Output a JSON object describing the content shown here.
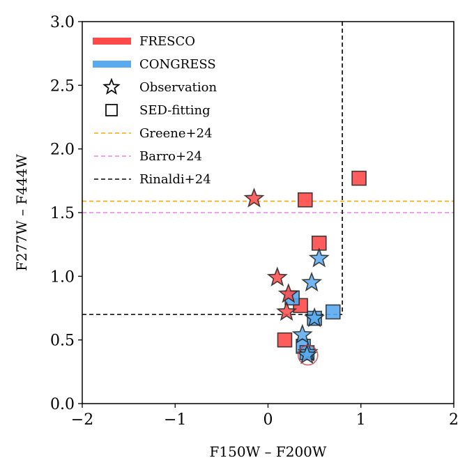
{
  "chart_data": {
    "type": "scatter",
    "xlabel": "F150W – F200W",
    "ylabel": "F277W – F444W",
    "xlim": [
      -2,
      2
    ],
    "ylim": [
      0,
      3
    ],
    "xticks": [
      "−2",
      "−1",
      "0",
      "1",
      "2"
    ],
    "xtick_values": [
      -2,
      -1,
      0,
      1,
      2
    ],
    "yticks": [
      "0.0",
      "0.5",
      "1.0",
      "1.5",
      "2.0",
      "2.5",
      "3.0"
    ],
    "ytick_values": [
      0,
      0.5,
      1.0,
      1.5,
      2.0,
      2.5,
      3.0
    ],
    "grid": false,
    "legend_position": "upper-left",
    "legend": [
      {
        "label": "FRESCO",
        "kind": "patch",
        "color": "#ff4a4a"
      },
      {
        "label": "CONGRESS",
        "kind": "patch",
        "color": "#5aaaf0"
      },
      {
        "label": "Observation",
        "kind": "star"
      },
      {
        "label": "SED-fitting",
        "kind": "square"
      },
      {
        "label": "Greene+24",
        "kind": "dashed",
        "color": "#ffa500"
      },
      {
        "label": "Barro+24",
        "kind": "dashed",
        "color": "#ee82ee"
      },
      {
        "label": "Rinaldi+24",
        "kind": "dashed",
        "color": "#000000"
      }
    ],
    "reference_lines": [
      {
        "name": "Greene+24",
        "orientation": "horizontal",
        "y": 1.59,
        "color": "#ffa500"
      },
      {
        "name": "Barro+24",
        "orientation": "horizontal",
        "y": 1.5,
        "color": "#ee82ee"
      },
      {
        "name": "Rinaldi+24",
        "orientation": "box",
        "x_boundary": 0.8,
        "y_boundary": 0.7,
        "color": "#000000"
      }
    ],
    "series": [
      {
        "name": "FRESCO",
        "marker": "square",
        "color": "#ff4a4a",
        "points": [
          [
            0.4,
            1.6
          ],
          [
            0.98,
            1.77
          ],
          [
            0.55,
            1.26
          ],
          [
            0.35,
            0.77
          ],
          [
            0.18,
            0.5
          ]
        ]
      },
      {
        "name": "CONGRESS",
        "marker": "square",
        "color": "#5aaaf0",
        "points": [
          [
            0.7,
            0.72
          ],
          [
            0.5,
            0.67
          ],
          [
            0.26,
            0.83
          ],
          [
            0.38,
            0.45
          ],
          [
            0.42,
            0.4
          ]
        ]
      },
      {
        "name": "FRESCO",
        "marker": "star",
        "color": "#ff4a4a",
        "points": [
          [
            -0.15,
            1.61
          ],
          [
            0.1,
            0.99
          ],
          [
            0.22,
            0.86
          ],
          [
            0.2,
            0.72
          ]
        ]
      },
      {
        "name": "CONGRESS",
        "marker": "star",
        "color": "#5aaaf0",
        "points": [
          [
            0.55,
            1.14
          ],
          [
            0.47,
            0.95
          ],
          [
            0.5,
            0.67
          ],
          [
            0.37,
            0.54
          ],
          [
            0.43,
            0.4
          ],
          [
            0.42,
            0.38
          ]
        ]
      }
    ],
    "highlight": {
      "marker": "circle",
      "color": "#c04040",
      "point": [
        0.43,
        0.38
      ]
    }
  }
}
